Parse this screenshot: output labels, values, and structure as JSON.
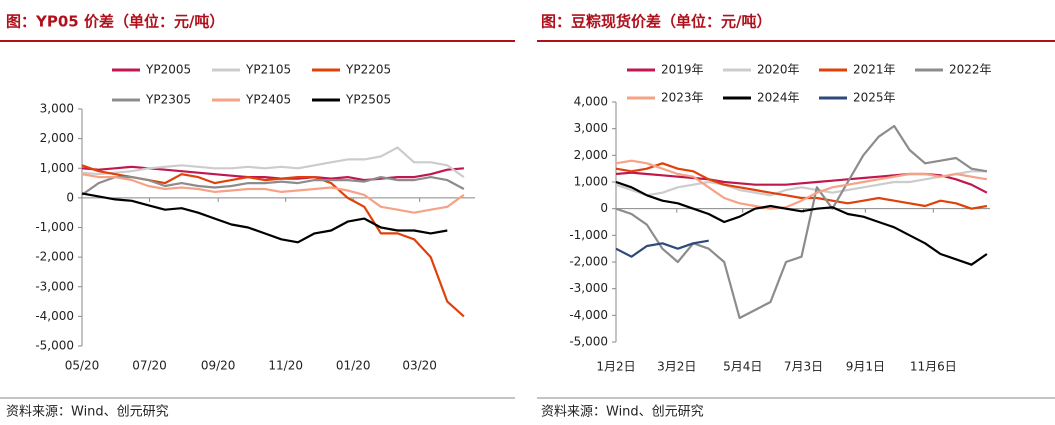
{
  "chart_data": [
    {
      "type": "line",
      "title": "图：YP05 价差（单位：元/吨）",
      "source": "资料来源：Wind、创元研究",
      "x": [
        0,
        15,
        30,
        45,
        60,
        75,
        90,
        105,
        120,
        135,
        150,
        165,
        180,
        195,
        210,
        225,
        240,
        255,
        270,
        285,
        300,
        315,
        330,
        345
      ],
      "xlim": [
        0,
        355
      ],
      "xticks": [
        {
          "value": 0,
          "label": "05/20"
        },
        {
          "value": 61,
          "label": "07/20"
        },
        {
          "value": 123,
          "label": "09/20"
        },
        {
          "value": 184,
          "label": "11/20"
        },
        {
          "value": 245,
          "label": "01/20"
        },
        {
          "value": 305,
          "label": "03/20"
        }
      ],
      "ylim": [
        -5000,
        3000
      ],
      "yticks": [
        {
          "value": 3000,
          "label": "3,000"
        },
        {
          "value": 2000,
          "label": "2,000"
        },
        {
          "value": 1000,
          "label": "1,000"
        },
        0,
        {
          "value": -1000,
          "label": "-1,000"
        },
        {
          "value": -2000,
          "label": "-2,000"
        },
        {
          "value": -3000,
          "label": "-3,000"
        },
        {
          "value": -4000,
          "label": "-4,000"
        },
        {
          "value": -5000,
          "label": "-5,000"
        }
      ],
      "series": [
        {
          "name": "YP2005",
          "color": "#c0184c",
          "values": [
            1000,
            950,
            1000,
            1050,
            1000,
            950,
            900,
            850,
            800,
            750,
            700,
            700,
            650,
            650,
            700,
            650,
            700,
            600,
            650,
            700,
            700,
            800,
            950,
            1000
          ]
        },
        {
          "name": "YP2105",
          "color": "#cccccc",
          "values": [
            850,
            800,
            850,
            900,
            1000,
            1050,
            1100,
            1050,
            1000,
            1000,
            1050,
            1000,
            1050,
            1000,
            1100,
            1200,
            1300,
            1300,
            1400,
            1700,
            1200,
            1200,
            1100,
            700
          ]
        },
        {
          "name": "YP2205",
          "color": "#e0400a",
          "values": [
            1100,
            900,
            800,
            700,
            600,
            500,
            800,
            700,
            500,
            600,
            700,
            600,
            650,
            700,
            700,
            500,
            0,
            -300,
            -1200,
            -1200,
            -1400,
            -2000,
            -3500,
            -4000
          ]
        },
        {
          "name": "YP2305",
          "color": "#8c8c8c",
          "values": [
            100,
            500,
            700,
            700,
            600,
            400,
            500,
            400,
            350,
            400,
            500,
            500,
            550,
            500,
            600,
            600,
            600,
            550,
            700,
            600,
            600,
            700,
            600,
            300
          ]
        },
        {
          "name": "YP2405",
          "color": "#f5a286",
          "values": [
            800,
            700,
            700,
            600,
            400,
            300,
            350,
            300,
            200,
            250,
            300,
            300,
            200,
            250,
            300,
            350,
            250,
            100,
            -300,
            -400,
            -500,
            -400,
            -300,
            100
          ]
        },
        {
          "name": "YP2505",
          "color": "#000000",
          "values": [
            150,
            50,
            -50,
            -100,
            -250,
            -400,
            -350,
            -500,
            -700,
            -900,
            -1000,
            -1200,
            -1400,
            -1500,
            -1200,
            -1100,
            -800,
            -700,
            -1000,
            -1100,
            -1100,
            -1200,
            -1100,
            null
          ]
        }
      ]
    },
    {
      "type": "line",
      "title": "图：豆粽现货价差（单位：元/吨）",
      "source": "资料来源：Wind、创元研究",
      "x": [
        0,
        15,
        30,
        45,
        60,
        75,
        90,
        105,
        120,
        135,
        150,
        165,
        180,
        195,
        210,
        225,
        240,
        255,
        270,
        285,
        300,
        315,
        330,
        345,
        360
      ],
      "xlim": [
        0,
        363
      ],
      "xticks": [
        {
          "value": 0,
          "label": "1月2日"
        },
        {
          "value": 59,
          "label": "3月2日"
        },
        {
          "value": 123,
          "label": "5月4日"
        },
        {
          "value": 182,
          "label": "7月3日"
        },
        {
          "value": 242,
          "label": "9月1日"
        },
        {
          "value": 308,
          "label": "11月6日"
        }
      ],
      "ylim": [
        -5000,
        4000
      ],
      "yticks": [
        {
          "value": 4000,
          "label": "4,000"
        },
        {
          "value": 3000,
          "label": "3,000"
        },
        {
          "value": 2000,
          "label": "2,000"
        },
        {
          "value": 1000,
          "label": "1,000"
        },
        0,
        {
          "value": -1000,
          "label": "-1,000"
        },
        {
          "value": -2000,
          "label": "-2,000"
        },
        {
          "value": -3000,
          "label": "-3,000"
        },
        {
          "value": -4000,
          "label": "-4,000"
        },
        {
          "value": -5000,
          "label": "-5,000"
        }
      ],
      "series": [
        {
          "name": "2019年",
          "color": "#c0184c",
          "values": [
            1300,
            1350,
            1300,
            1250,
            1200,
            1150,
            1100,
            1000,
            950,
            900,
            900,
            900,
            950,
            1000,
            1050,
            1100,
            1150,
            1200,
            1250,
            1300,
            1300,
            1250,
            1100,
            900,
            600
          ]
        },
        {
          "name": "2020年",
          "color": "#cccccc",
          "values": [
            900,
            700,
            500,
            600,
            800,
            900,
            1000,
            900,
            700,
            600,
            500,
            700,
            800,
            700,
            600,
            700,
            800,
            900,
            1000,
            1000,
            1100,
            1200,
            1300,
            1400,
            1400
          ]
        },
        {
          "name": "2021年",
          "color": "#e0400a",
          "values": [
            1500,
            1400,
            1500,
            1700,
            1500,
            1400,
            1100,
            900,
            800,
            700,
            600,
            500,
            400,
            400,
            300,
            200,
            300,
            400,
            300,
            200,
            100,
            300,
            200,
            0,
            100
          ]
        },
        {
          "name": "2022年",
          "color": "#8c8c8c",
          "values": [
            0,
            -200,
            -600,
            -1500,
            -2000,
            -1300,
            -1500,
            -2000,
            -4100,
            -3800,
            -3500,
            -2000,
            -1800,
            800,
            0,
            1000,
            2000,
            2700,
            3100,
            2200,
            1700,
            1800,
            1900,
            1500,
            1400
          ]
        },
        {
          "name": "2023年",
          "color": "#f5a286",
          "values": [
            1700,
            1800,
            1700,
            1500,
            1300,
            1200,
            800,
            400,
            200,
            100,
            0,
            50,
            300,
            600,
            800,
            900,
            1000,
            1100,
            1200,
            1300,
            1300,
            1200,
            1300,
            1200,
            1100
          ]
        },
        {
          "name": "2024年",
          "color": "#000000",
          "values": [
            1000,
            800,
            500,
            300,
            200,
            0,
            -200,
            -500,
            -300,
            0,
            100,
            0,
            -100,
            0,
            50,
            -200,
            -300,
            -500,
            -700,
            -1000,
            -1300,
            -1700,
            -1900,
            -2100,
            -1700
          ]
        },
        {
          "name": "2025年",
          "color": "#2e4a7a",
          "values": [
            -1500,
            -1800,
            -1400,
            -1300,
            -1500,
            -1300,
            -1200,
            null,
            null,
            null,
            null,
            null,
            null,
            null,
            null,
            null,
            null,
            null,
            null,
            null,
            null,
            null,
            null,
            null,
            null
          ]
        }
      ]
    }
  ]
}
